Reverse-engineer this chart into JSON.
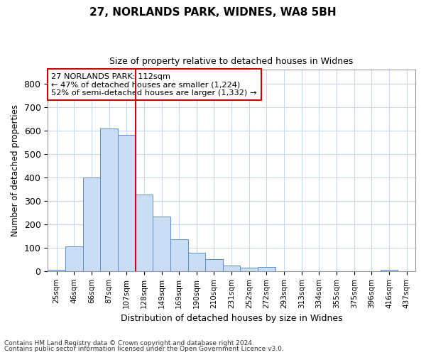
{
  "title1": "27, NORLANDS PARK, WIDNES, WA8 5BH",
  "title2": "Size of property relative to detached houses in Widnes",
  "xlabel": "Distribution of detached houses by size in Widnes",
  "ylabel": "Number of detached properties",
  "footer1": "Contains HM Land Registry data © Crown copyright and database right 2024.",
  "footer2": "Contains public sector information licensed under the Open Government Licence v3.0.",
  "categories": [
    "25sqm",
    "46sqm",
    "66sqm",
    "87sqm",
    "107sqm",
    "128sqm",
    "149sqm",
    "169sqm",
    "190sqm",
    "210sqm",
    "231sqm",
    "252sqm",
    "272sqm",
    "293sqm",
    "313sqm",
    "334sqm",
    "355sqm",
    "375sqm",
    "396sqm",
    "416sqm",
    "437sqm"
  ],
  "values": [
    5,
    107,
    400,
    610,
    582,
    327,
    233,
    135,
    78,
    50,
    25,
    15,
    17,
    0,
    0,
    0,
    0,
    0,
    0,
    7,
    0
  ],
  "bar_color": "#c9ddf5",
  "bar_edge_color": "#5b8fcf",
  "grid_color": "#c8d8ee",
  "vline_x": 4.5,
  "vline_color": "#cc0000",
  "annotation_text": "27 NORLANDS PARK: 112sqm\n← 47% of detached houses are smaller (1,224)\n52% of semi-detached houses are larger (1,332) →",
  "annotation_box_color": "#ffffff",
  "annotation_box_edge": "#cc0000",
  "ylim": [
    0,
    860
  ],
  "yticks": [
    0,
    100,
    200,
    300,
    400,
    500,
    600,
    700,
    800
  ],
  "background_color": "#ffffff"
}
